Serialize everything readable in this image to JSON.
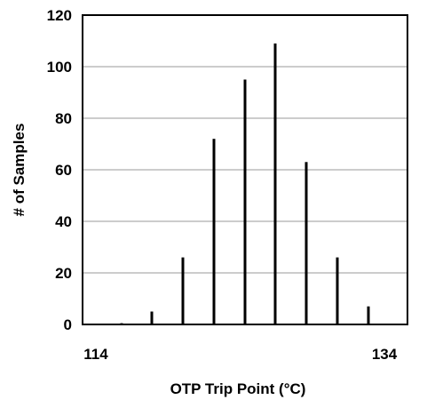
{
  "chart_data": {
    "type": "bar",
    "xlabel": "OTP Trip Point (°C)",
    "ylabel": "# of Samples",
    "xlim": [
      114,
      134
    ],
    "ylim": [
      0,
      120
    ],
    "x_ticks": [
      114,
      134
    ],
    "y_ticks": [
      0,
      20,
      40,
      60,
      80,
      100,
      120
    ],
    "grid": true,
    "x": [
      116,
      118,
      120,
      122,
      124,
      126,
      128,
      130,
      132
    ],
    "values": [
      0.5,
      5,
      26,
      72,
      95,
      109,
      63,
      26,
      7
    ],
    "colors": {
      "bars": "#000000",
      "grid": "#999999",
      "axes": "#000000"
    }
  }
}
